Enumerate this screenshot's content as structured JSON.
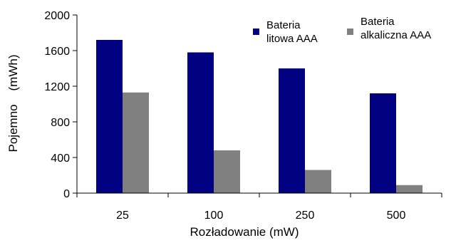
{
  "chart_data": {
    "type": "bar",
    "title": "",
    "xlabel": "Rozładowanie (mW)",
    "ylabel": "Pojemno    (mWh)",
    "categories": [
      "25",
      "100",
      "250",
      "500"
    ],
    "ylim": [
      0,
      2000
    ],
    "yticks": [
      "0",
      "400",
      "800",
      "1200",
      "1600",
      "2000"
    ],
    "grid": false,
    "legend_position": "top-right",
    "series": [
      {
        "name_lines": [
          "Bateria",
          "litowa AAA"
        ],
        "color": "#000080",
        "values": [
          1720,
          1580,
          1400,
          1120
        ]
      },
      {
        "name_lines": [
          "Bateria",
          "alkaliczna AAA"
        ],
        "color": "#808080",
        "values": [
          1130,
          480,
          260,
          90
        ]
      }
    ]
  }
}
